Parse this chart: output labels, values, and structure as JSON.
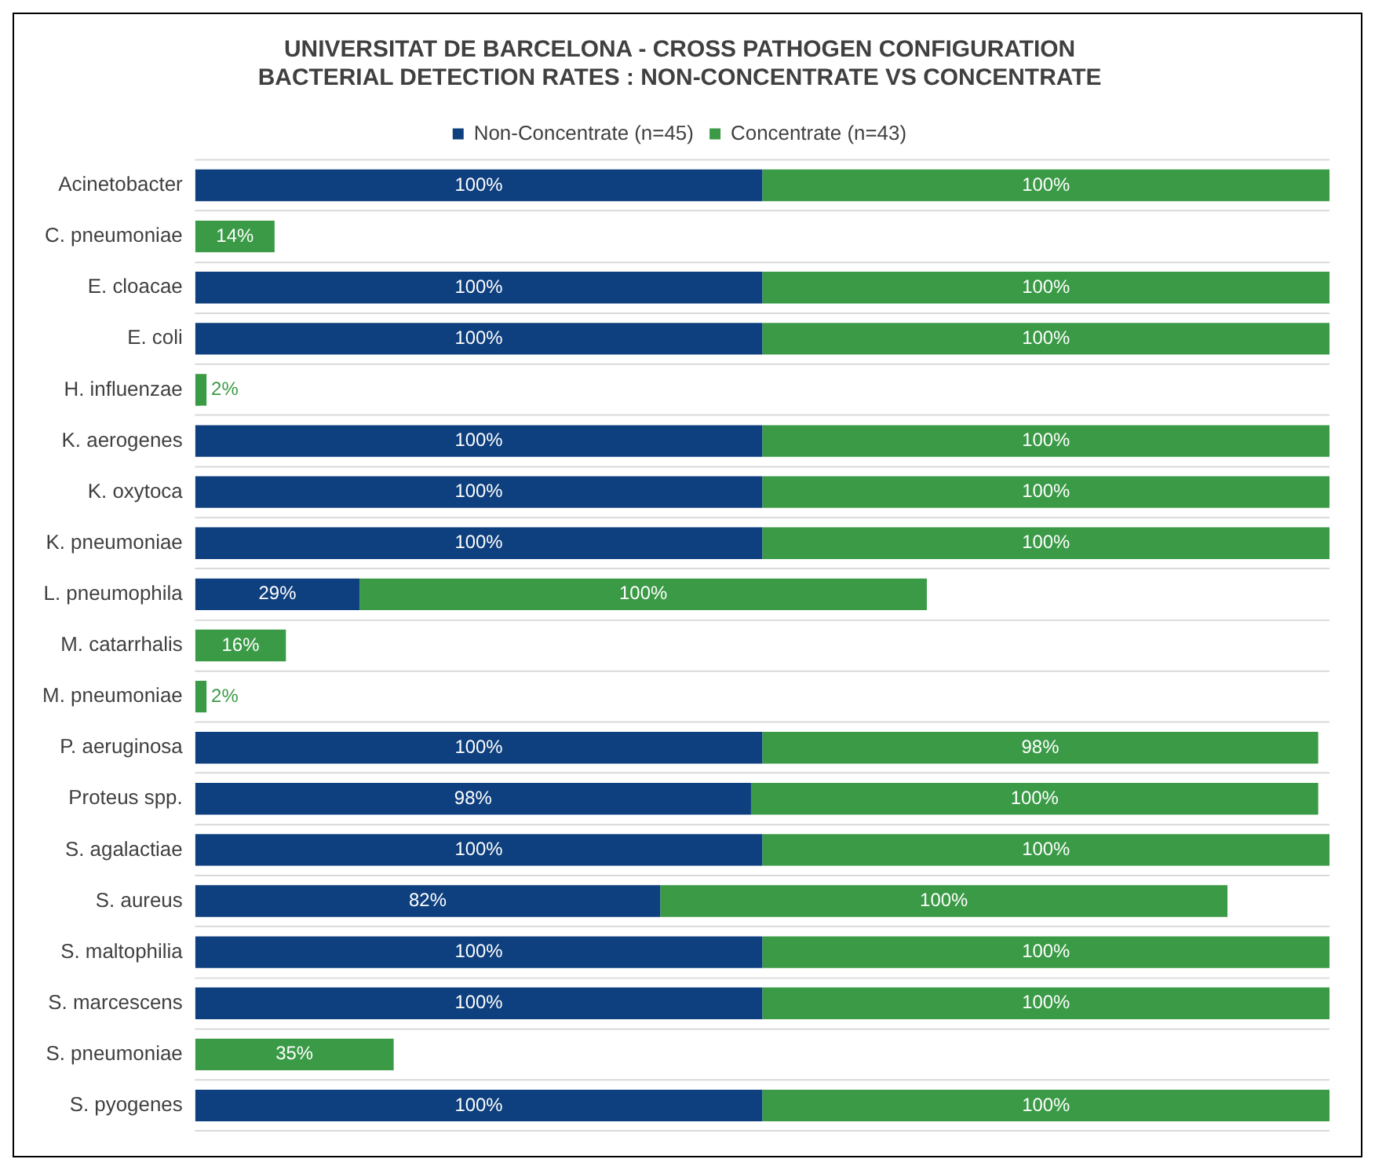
{
  "chart_data": {
    "type": "bar",
    "orientation": "horizontal",
    "stacked": true,
    "title": "UNIVERSITAT DE BARCELONA - CROSS PATHOGEN CONFIGURATION BACTERIAL DETECTION RATES : NON-CONCENTRATE VS CONCENTRATE",
    "categories": [
      "Acinetobacter",
      "C. pneumoniae",
      "E. cloacae",
      "E. coli",
      "H. influenzae",
      "K. aerogenes",
      "K. oxytoca",
      "K. pneumoniae",
      "L. pneumophila",
      "M. catarrhalis",
      "M. pneumoniae",
      "P. aeruginosa",
      "Proteus spp.",
      "S. agalactiae",
      "S. aureus",
      "S. maltophilia",
      "S. marcescens",
      "S. pneumoniae",
      "S. pyogenes"
    ],
    "series": [
      {
        "name": "Non-Concentrate (n=45)",
        "color": "#0e3f7e",
        "values": [
          100,
          null,
          100,
          100,
          null,
          100,
          100,
          100,
          29,
          null,
          null,
          100,
          98,
          100,
          82,
          100,
          100,
          null,
          100
        ],
        "value_labels": [
          "100%",
          null,
          "100%",
          "100%",
          null,
          "100%",
          "100%",
          "100%",
          "29%",
          null,
          null,
          "100%",
          "98%",
          "100%",
          "82%",
          "100%",
          "100%",
          null,
          "100%"
        ]
      },
      {
        "name": "Concentrate (n=43)",
        "color": "#3a9a46",
        "values": [
          100,
          14,
          100,
          100,
          2,
          100,
          100,
          100,
          100,
          16,
          2,
          98,
          100,
          100,
          100,
          100,
          100,
          35,
          100
        ],
        "value_labels": [
          "100%",
          "14%",
          "100%",
          "100%",
          "2%",
          "100%",
          "100%",
          "100%",
          "100%",
          "16%",
          "2%",
          "98%",
          "100%",
          "100%",
          "100%",
          "100%",
          "100%",
          "35%",
          "100%"
        ]
      }
    ],
    "grid": "y",
    "legend": "top"
  }
}
